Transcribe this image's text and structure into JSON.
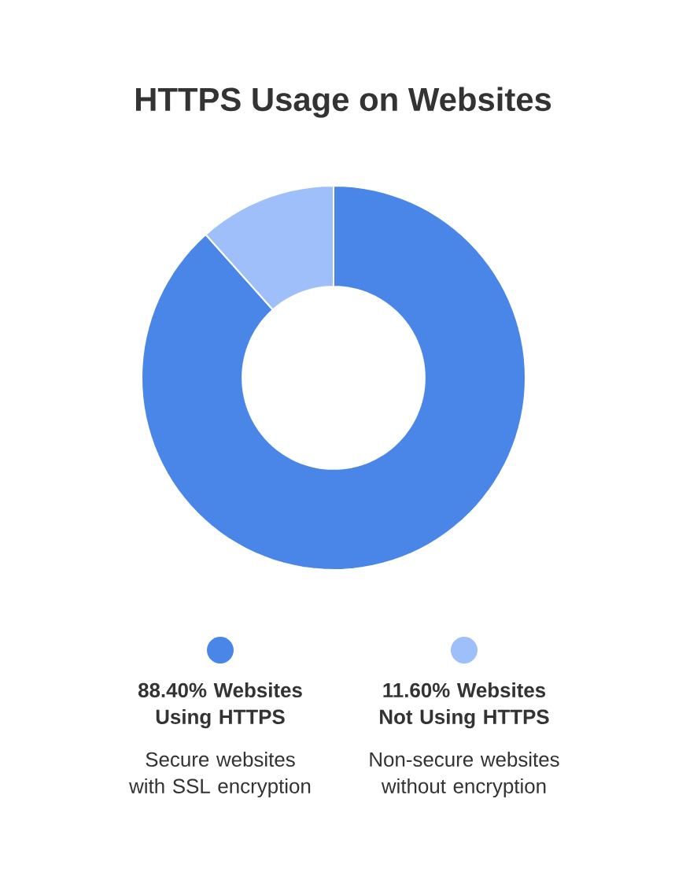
{
  "chart_data": {
    "type": "donut",
    "title": "HTTPS Usage on Websites",
    "categories": [
      "88.40% Websites Using HTTPS",
      "11.60% Websites Not Using HTTPS"
    ],
    "values": [
      88.4,
      11.6
    ],
    "colors": [
      "#4a86e8",
      "#9fbffb"
    ],
    "annotations": [
      "Secure websites with SSL encryption",
      "Non-secure websites without encryption"
    ],
    "legend": "bottom"
  }
}
